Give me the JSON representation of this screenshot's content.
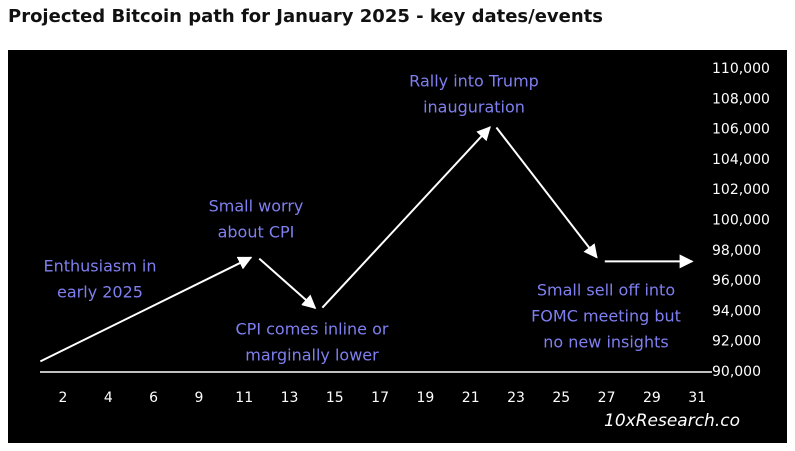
{
  "chart_data": {
    "type": "line",
    "title": "Projected Bitcoin path for January 2025 - key dates/events",
    "x": [
      1,
      11.5,
      14.3,
      22,
      26.7,
      31
    ],
    "series": [
      {
        "color": "#ffffff",
        "values": [
          90700,
          97700,
          94000,
          106400,
          97300,
          97300
        ]
      }
    ],
    "xticks": [
      2,
      4,
      6,
      9,
      11,
      13,
      15,
      17,
      19,
      21,
      23,
      25,
      27,
      29,
      31
    ],
    "ylim": [
      90000,
      110000
    ],
    "yticks": [
      {
        "value": 90000,
        "label": "90,000"
      },
      {
        "value": 92000,
        "label": "92,000"
      },
      {
        "value": 94000,
        "label": "94,000"
      },
      {
        "value": 96000,
        "label": "96,000"
      },
      {
        "value": 98000,
        "label": "98,000"
      },
      {
        "value": 100000,
        "label": "100,000"
      },
      {
        "value": 102000,
        "label": "102,000"
      },
      {
        "value": 104000,
        "label": "104,000"
      },
      {
        "value": 106000,
        "label": "106,000"
      },
      {
        "value": 108000,
        "label": "108,000"
      },
      {
        "value": 110000,
        "label": "110,000"
      }
    ],
    "annotation_color": "#7f7ff0",
    "annotations": [
      [
        "Enthusiasm in",
        "early 2025"
      ],
      [
        "Small worry",
        "about CPI"
      ],
      [
        "CPI comes inline or",
        "marginally lower"
      ],
      [
        "Rally into Trump",
        "inauguration"
      ],
      [
        "Small sell off into",
        "FOMC meeting but",
        "no new insights"
      ]
    ],
    "source": "10xResearch.co"
  }
}
